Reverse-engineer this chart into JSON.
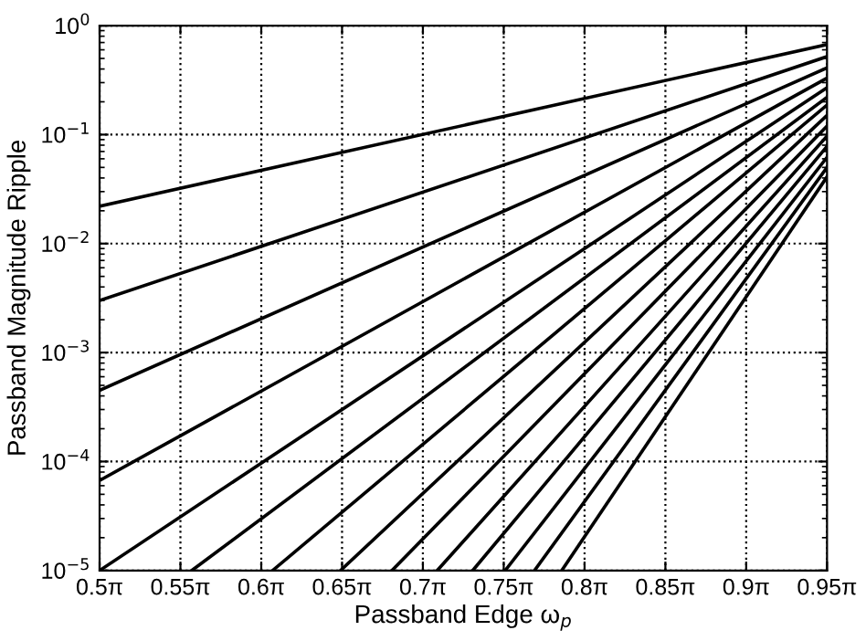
{
  "chart_data": {
    "type": "line",
    "xlabel": "Passband Edge ω$_{p}$",
    "ylabel": "Passband Magnitude Ripple",
    "log": "y",
    "grid": true,
    "line_style": "solid",
    "marker": "none",
    "xlim": [
      1.5708,
      2.9845
    ],
    "ylim": [
      1e-05,
      1
    ],
    "xticks": [
      {
        "value": 1.5708,
        "label": "0.5π"
      },
      {
        "value": 1.7279,
        "label": "0.55π"
      },
      {
        "value": 1.885,
        "label": "0.6π"
      },
      {
        "value": 2.042,
        "label": "0.65π"
      },
      {
        "value": 2.1991,
        "label": "0.7π"
      },
      {
        "value": 2.3562,
        "label": "0.75π"
      },
      {
        "value": 2.5133,
        "label": "0.8π"
      },
      {
        "value": 2.6704,
        "label": "0.85π"
      },
      {
        "value": 2.8274,
        "label": "0.9π"
      },
      {
        "value": 2.9845,
        "label": "0.95π"
      }
    ],
    "yticks": [
      {
        "value": 1e-05,
        "label": "10$^{−5}$"
      },
      {
        "value": 0.0001,
        "label": "10$^{−4}$"
      },
      {
        "value": 0.001,
        "label": "10$^{−3}$"
      },
      {
        "value": 0.01,
        "label": "10$^{−2}$"
      },
      {
        "value": 0.1,
        "label": "10$^{−1}$"
      },
      {
        "value": 1,
        "label": "10$^{0}$"
      }
    ],
    "series": [
      {
        "color": "#000000",
        "x": [
          1.5708,
          2.9845
        ],
        "values": [
          0.022,
          0.67
        ]
      },
      {
        "color": "#000000",
        "x": [
          1.5708,
          2.9845
        ],
        "values": [
          0.003,
          0.52
        ]
      },
      {
        "color": "#000000",
        "x": [
          1.5708,
          2.9845
        ],
        "values": [
          0.00045,
          0.41
        ]
      },
      {
        "color": "#000000",
        "x": [
          1.5708,
          2.9845
        ],
        "values": [
          6.7e-05,
          0.33
        ]
      },
      {
        "color": "#000000",
        "x": [
          1.5708,
          2.9845
        ],
        "values": [
          1e-05,
          0.27
        ]
      },
      {
        "color": "#000000",
        "x": [
          1.75,
          2.9845
        ],
        "values": [
          1e-05,
          0.22
        ]
      },
      {
        "color": "#000000",
        "x": [
          1.907,
          2.9845
        ],
        "values": [
          1e-05,
          0.187
        ]
      },
      {
        "color": "#000000",
        "x": [
          2.039,
          2.9845
        ],
        "values": [
          1e-05,
          0.15
        ]
      },
      {
        "color": "#000000",
        "x": [
          2.139,
          2.9845
        ],
        "values": [
          1e-05,
          0.12
        ]
      },
      {
        "color": "#000000",
        "x": [
          2.227,
          2.9845
        ],
        "values": [
          1e-05,
          0.097
        ]
      },
      {
        "color": "#000000",
        "x": [
          2.296,
          2.9845
        ],
        "values": [
          1e-05,
          0.078
        ]
      },
      {
        "color": "#000000",
        "x": [
          2.359,
          2.9845
        ],
        "values": [
          1e-05,
          0.062
        ]
      },
      {
        "color": "#000000",
        "x": [
          2.416,
          2.9845
        ],
        "values": [
          1e-05,
          0.05
        ]
      },
      {
        "color": "#000000",
        "x": [
          2.469,
          2.9845
        ],
        "values": [
          1e-05,
          0.041
        ]
      }
    ]
  }
}
